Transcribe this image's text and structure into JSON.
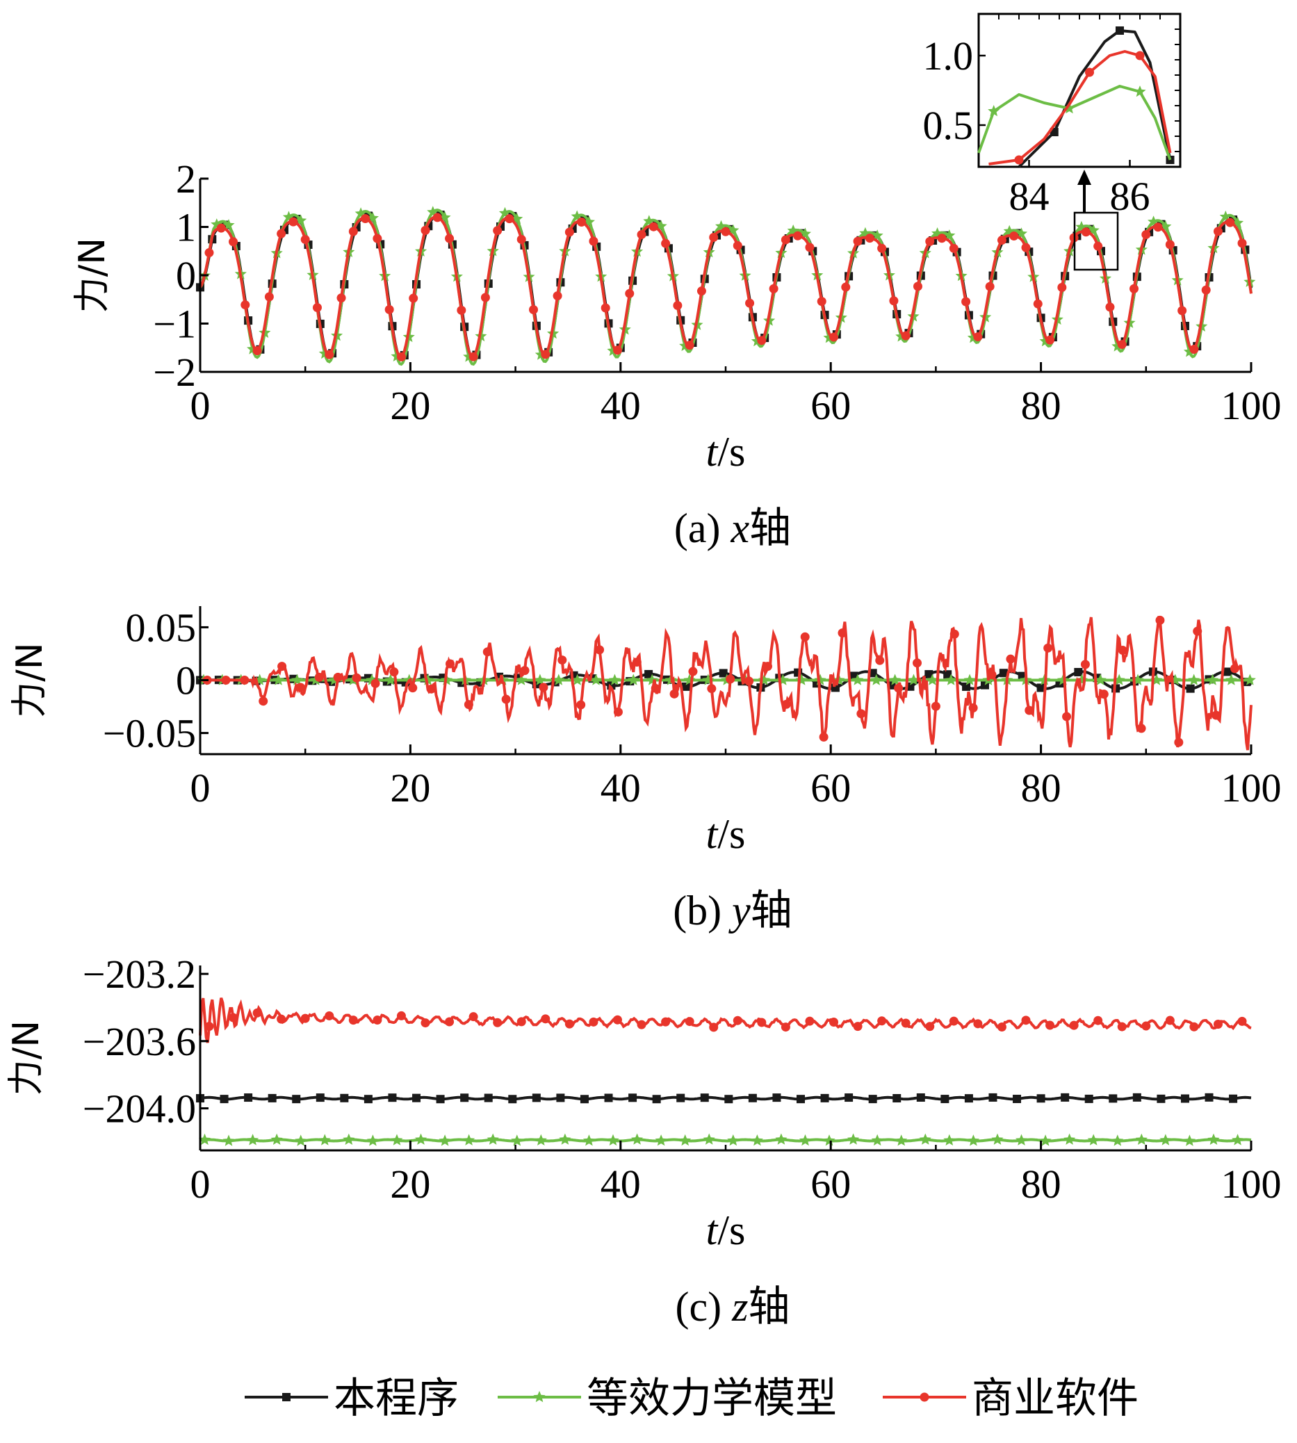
{
  "colors": {
    "black": "#1a1a1a",
    "green": "#6cbd45",
    "red": "#e8352b"
  },
  "legend": {
    "items": [
      {
        "label": "本程序",
        "color": "#1a1a1a",
        "marker": "square"
      },
      {
        "label": "等效力学模型",
        "color": "#6cbd45",
        "marker": "star"
      },
      {
        "label": "商业软件",
        "color": "#e8352b",
        "marker": "circle"
      }
    ]
  },
  "chart_data": [
    {
      "type": "line",
      "caption_prefix": "(a) ",
      "caption_var": "x",
      "caption_suffix": "轴",
      "ylabel": "力/N",
      "xlabel_var": "t",
      "xlabel_unit": "/s",
      "xlim": [
        0,
        100
      ],
      "ylim": [
        -2,
        2
      ],
      "xticks": [
        "0",
        "20",
        "40",
        "60",
        "80",
        "100"
      ],
      "yticks": [
        "−2",
        "−1",
        "0",
        "1",
        "2"
      ],
      "grid": false,
      "series": [
        {
          "name": "本程序",
          "color": "#1a1a1a",
          "marker": "square",
          "amplitude": 1.5,
          "offset": 0,
          "period": 6.85,
          "phase": 0.0
        },
        {
          "name": "等效力学模型",
          "color": "#6cbd45",
          "marker": "star",
          "amplitude": 1.6,
          "offset": 0,
          "period": 6.85,
          "phase": 0.05
        },
        {
          "name": "商业软件",
          "color": "#e8352b",
          "marker": "circle",
          "amplitude": 1.45,
          "offset": 0,
          "period": 6.85,
          "phase": 0.1
        }
      ],
      "inset": {
        "xlim": [
          83,
          87
        ],
        "ylim": [
          0.2,
          1.3
        ],
        "xticks": [
          "84",
          "86"
        ],
        "yticks": [
          "1.0",
          "0.5"
        ],
        "series": [
          {
            "name": "本程序",
            "x": [
              83.8,
              84.5,
              85.0,
              85.5,
              85.8,
              86.1,
              86.4,
              86.8
            ],
            "y": [
              0.2,
              0.45,
              0.85,
              1.1,
              1.18,
              1.17,
              0.95,
              0.25
            ]
          },
          {
            "name": "等效力学模型",
            "x": [
              83.0,
              83.3,
              83.8,
              84.3,
              84.8,
              85.3,
              85.8,
              86.2,
              86.5,
              86.8
            ],
            "y": [
              0.3,
              0.6,
              0.72,
              0.66,
              0.62,
              0.7,
              0.78,
              0.74,
              0.55,
              0.25
            ]
          },
          {
            "name": "商业软件",
            "x": [
              83.2,
              83.8,
              84.3,
              84.8,
              85.2,
              85.6,
              85.9,
              86.2,
              86.5,
              86.8
            ],
            "y": [
              0.22,
              0.25,
              0.4,
              0.65,
              0.88,
              1.0,
              1.03,
              1.0,
              0.85,
              0.3
            ]
          }
        ]
      }
    },
    {
      "type": "line",
      "caption_prefix": "(b) ",
      "caption_var": "y",
      "caption_suffix": "轴",
      "ylabel": "力/N",
      "xlabel_var": "t",
      "xlabel_unit": "/s",
      "xlim": [
        0,
        100
      ],
      "ylim": [
        -0.07,
        0.07
      ],
      "xticks": [
        "0",
        "20",
        "40",
        "60",
        "80",
        "100"
      ],
      "yticks": [
        "0.05",
        "0",
        "−0.05"
      ],
      "grid": false,
      "series": [
        {
          "name": "本程序",
          "color": "#1a1a1a",
          "marker": "square",
          "amplitude": 0.008,
          "offset": 0
        },
        {
          "name": "等效力学模型",
          "color": "#6cbd45",
          "marker": "star",
          "amplitude": 0.0005,
          "offset": 0
        },
        {
          "name": "商业软件",
          "color": "#e8352b",
          "marker": "circle",
          "amplitude": 0.06,
          "offset": 0
        }
      ]
    },
    {
      "type": "line",
      "caption_prefix": "(c) ",
      "caption_var": "z",
      "caption_suffix": "轴",
      "ylabel": "力/N",
      "xlabel_var": "t",
      "xlabel_unit": "/s",
      "xlim": [
        0,
        100
      ],
      "ylim": [
        -204.25,
        -203.15
      ],
      "xticks": [
        "0",
        "20",
        "40",
        "60",
        "80",
        "100"
      ],
      "yticks": [
        "−203.2",
        "−203.6",
        "−204.0"
      ],
      "grid": false,
      "series": [
        {
          "name": "本程序",
          "color": "#1a1a1a",
          "marker": "square",
          "amplitude": 0.005,
          "offset": -203.94
        },
        {
          "name": "等效力学模型",
          "color": "#6cbd45",
          "marker": "star",
          "amplitude": 0.004,
          "offset": -204.19
        },
        {
          "name": "商业软件",
          "color": "#e8352b",
          "marker": "circle",
          "amplitude": 0.02,
          "offset": -203.5
        }
      ]
    }
  ]
}
